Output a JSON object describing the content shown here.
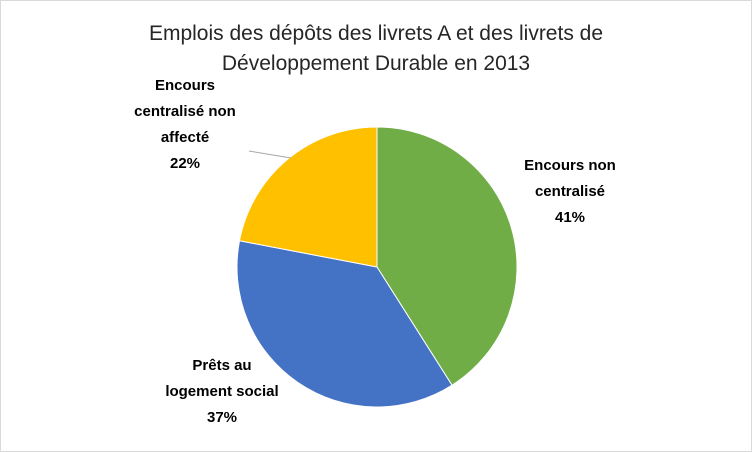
{
  "chart_data": {
    "type": "pie",
    "title_lines": [
      "Emplois des dépôts des livrets A et des livrets de",
      "Développement Durable en 2013"
    ],
    "slices": [
      {
        "name": "Encours non centralisé",
        "label_lines": [
          "Encours non",
          "centralisé",
          "41%"
        ],
        "value": 41,
        "color": "#70ad47"
      },
      {
        "name": "Prêts au logement social",
        "label_lines": [
          "Prêts au",
          "logement social",
          "37%"
        ],
        "value": 37,
        "color": "#4472c4"
      },
      {
        "name": "Encours centralisé non affecté",
        "label_lines": [
          "Encours",
          "centralisé non",
          "affecté",
          "22%"
        ],
        "value": 22,
        "color": "#ffc000"
      }
    ]
  }
}
